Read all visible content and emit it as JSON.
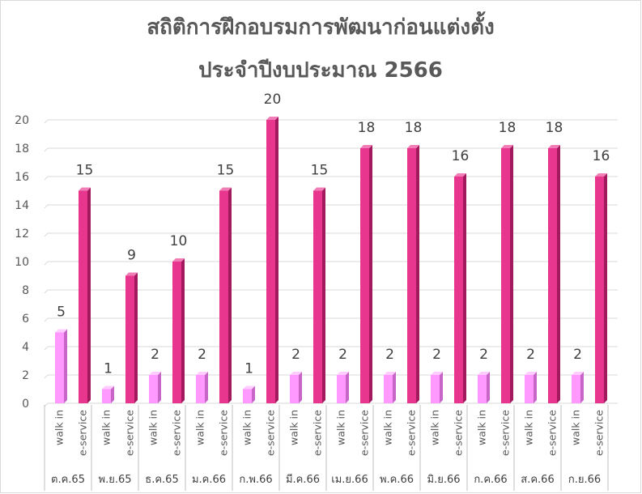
{
  "chart_data": {
    "type": "bar",
    "title": "สถิติการฝึกอบรมการพัฒนาก่อนแต่งตั้ง",
    "subtitle": "ประจำปีงบประมาณ 2566",
    "categories": [
      "ต.ค.65",
      "พ.ย.65",
      "ธ.ค.65",
      "ม.ค.66",
      "ก.พ.66",
      "มี.ค.66",
      "เม.ย.66",
      "พ.ค.66",
      "มิ.ย.66",
      "ก.ค.66",
      "ส.ค.66",
      "ก.ย.66"
    ],
    "sub_categories": [
      "walk in",
      "e-service"
    ],
    "series": [
      {
        "name": "walk in",
        "values": [
          5,
          1,
          2,
          2,
          1,
          2,
          2,
          2,
          2,
          2,
          2,
          2
        ],
        "color": "#FF99FF",
        "side_color": "#C766C7",
        "top_color": "#FFCCFF"
      },
      {
        "name": "e-service",
        "values": [
          15,
          9,
          10,
          15,
          20,
          15,
          18,
          18,
          16,
          18,
          18,
          16
        ],
        "color": "#E8368F",
        "side_color": "#A3195E",
        "top_color": "#F07DB6"
      }
    ],
    "ylim": [
      0,
      20
    ],
    "yticks": [
      0,
      2,
      4,
      6,
      8,
      10,
      12,
      14,
      16,
      18,
      20
    ],
    "grid": true,
    "legend": "none",
    "data_labels": true
  }
}
